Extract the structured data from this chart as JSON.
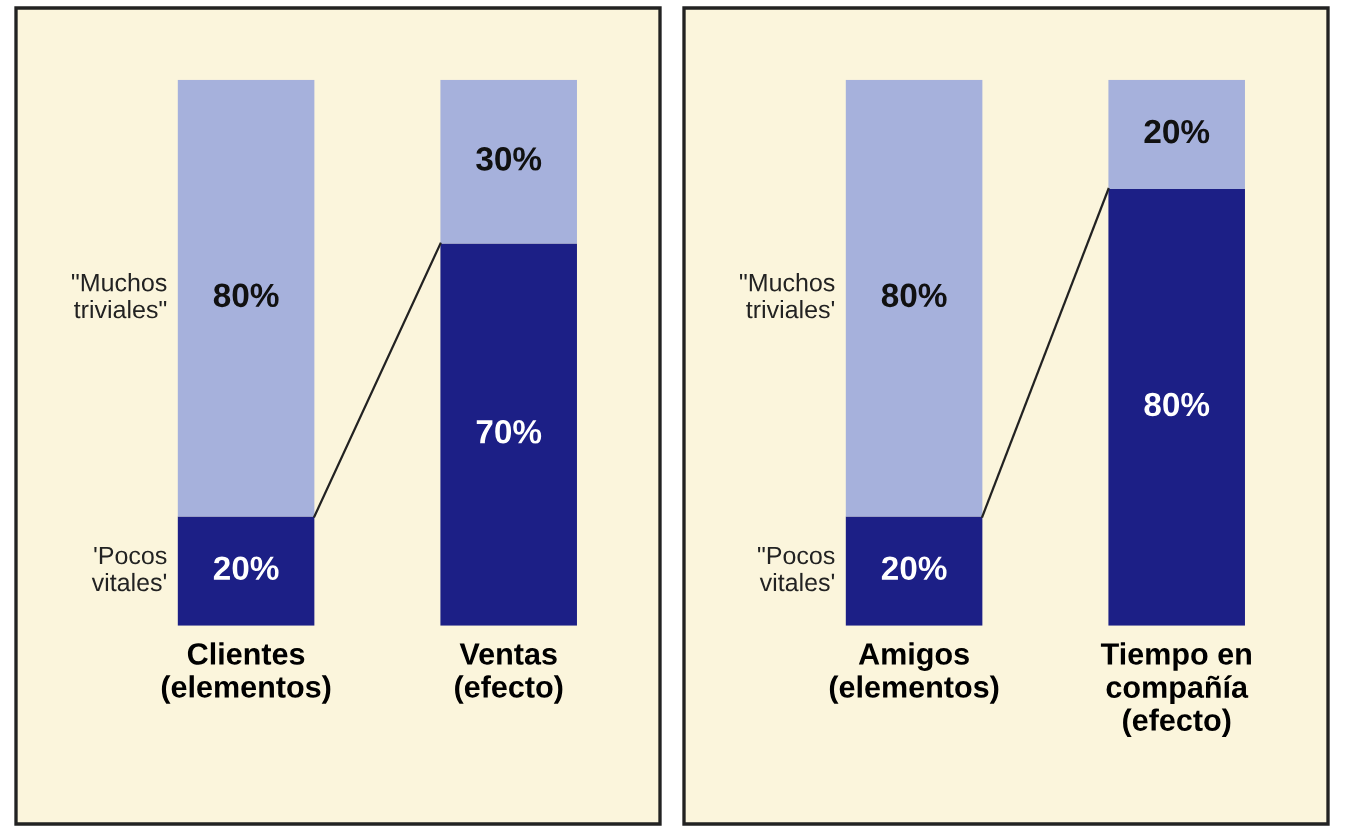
{
  "chart_data": [
    {
      "type": "bar",
      "stacked": true,
      "categories": [
        "Clientes\n(elementos)",
        "Ventas\n(efecto)"
      ],
      "tick_labels": "x",
      "grid": false,
      "series": [
        {
          "color": "#1c1f86",
          "values": [
            20,
            70
          ],
          "value_labels": [
            "20%",
            "70%"
          ]
        },
        {
          "color": "#a6b1dc",
          "values": [
            80,
            30
          ],
          "value_labels": [
            "80%",
            "30%"
          ]
        }
      ],
      "annotations": [
        "\"Muchos\ntriviales\"",
        "'Pocos\nvitales'"
      ]
    },
    {
      "type": "bar",
      "stacked": true,
      "categories": [
        "Amigos\n(elementos)",
        "Tiempo en\ncompañía\n(efecto)"
      ],
      "tick_labels": "x",
      "grid": false,
      "series": [
        {
          "color": "#1c1f86",
          "values": [
            20,
            80
          ],
          "value_labels": [
            "20%",
            "80%"
          ]
        },
        {
          "color": "#a6b1dc",
          "values": [
            80,
            20
          ],
          "value_labels": [
            "80%",
            "20%"
          ]
        }
      ],
      "annotations": [
        "\"Muchos\ntriviales'",
        "\"Pocos\nvitales'"
      ]
    }
  ]
}
